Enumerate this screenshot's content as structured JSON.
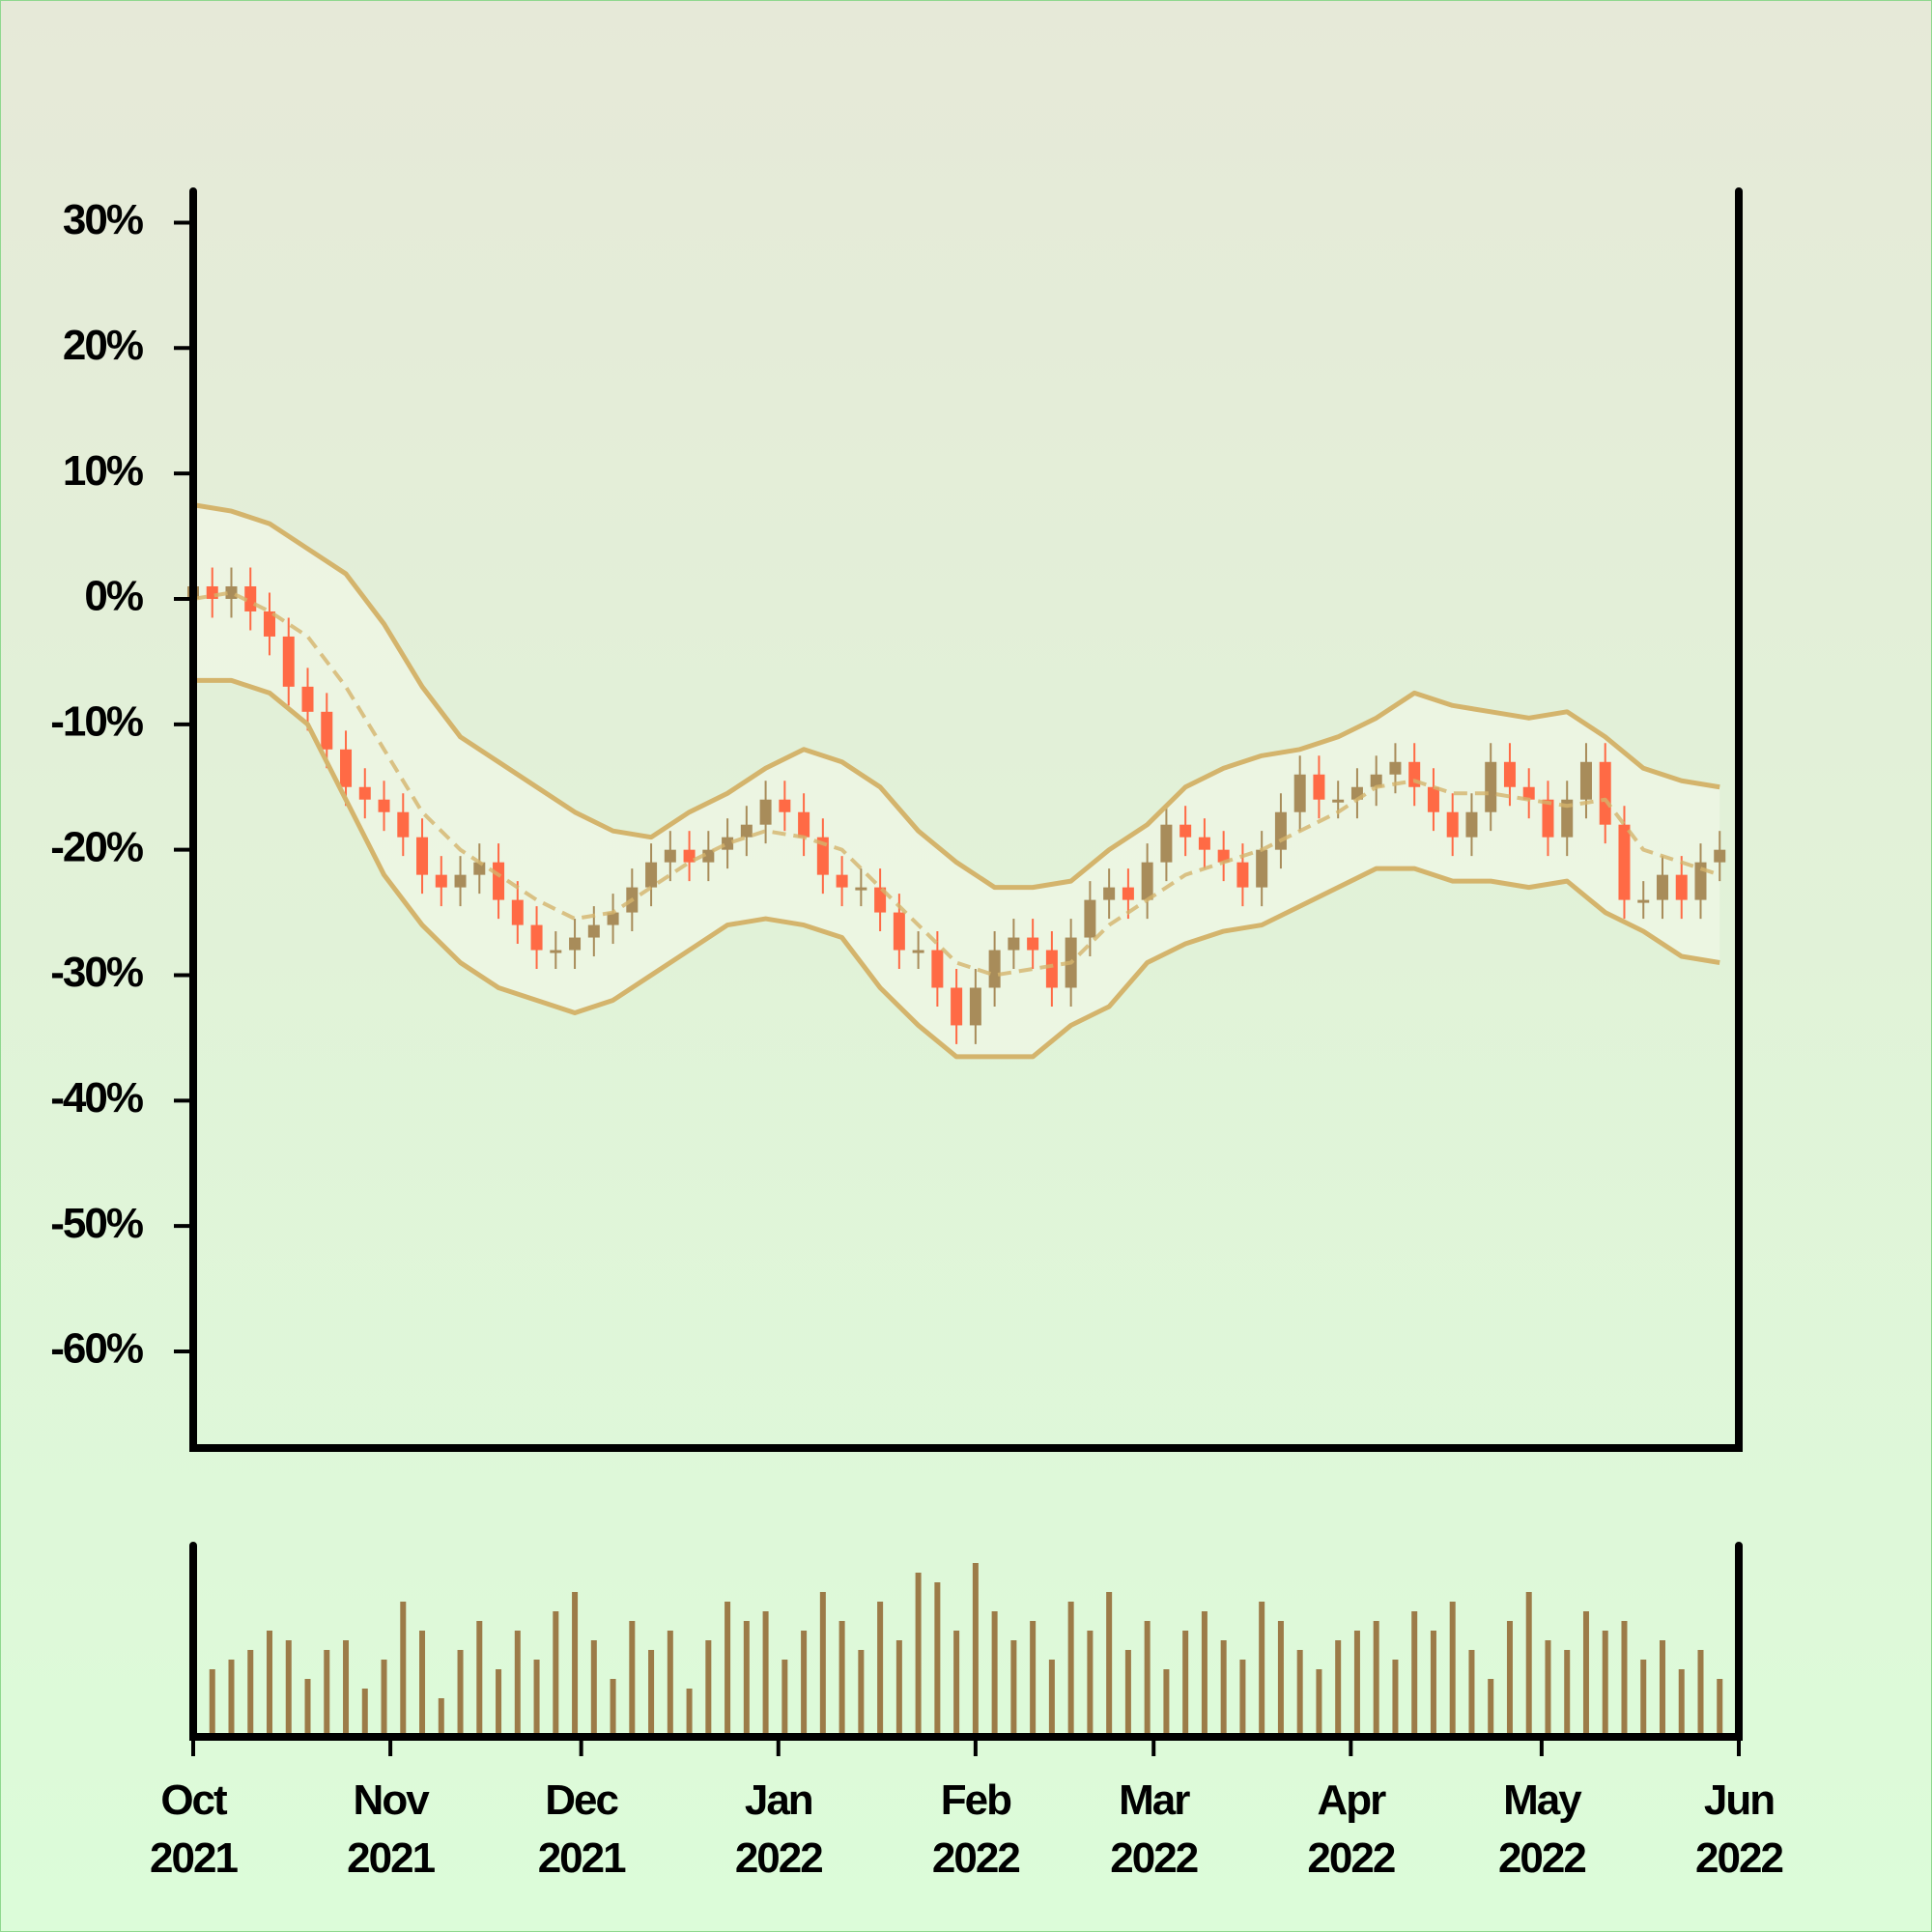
{
  "chart_data": {
    "type": "candlestick",
    "x": [
      0,
      3,
      6,
      9,
      12,
      15,
      18,
      21,
      24,
      27,
      30,
      33,
      36,
      39,
      42,
      45,
      48,
      51,
      54,
      57,
      60,
      63,
      66,
      69,
      72,
      75,
      78,
      81,
      84,
      87,
      90,
      93,
      96,
      99,
      102,
      105,
      108,
      111,
      114,
      117,
      120,
      123,
      126,
      129,
      132,
      135,
      138,
      141,
      144,
      147,
      150,
      153,
      156,
      159,
      162,
      165,
      168,
      171,
      174,
      177,
      180,
      183,
      186,
      189,
      192,
      195,
      198,
      201,
      204,
      207,
      210,
      213,
      216,
      219,
      222,
      225,
      228,
      231,
      234,
      237,
      240
    ],
    "open": [
      0,
      1,
      0,
      1,
      -1,
      -3,
      -7,
      -9,
      -12,
      -15,
      -16,
      -17,
      -19,
      -22,
      -23,
      -22,
      -21,
      -24,
      -26,
      -28,
      -28,
      -27,
      -26,
      -25,
      -23,
      -21,
      -20,
      -21,
      -20,
      -19,
      -18,
      -16,
      -17,
      -19,
      -22,
      -23,
      -23,
      -25,
      -28,
      -28,
      -31,
      -34,
      -31,
      -28,
      -27,
      -28,
      -31,
      -27,
      -24,
      -23,
      -24,
      -21,
      -18,
      -19,
      -20,
      -21,
      -23,
      -20,
      -17,
      -14,
      -16,
      -16,
      -15,
      -14,
      -13,
      -15,
      -17,
      -19,
      -17,
      -13,
      -15,
      -16,
      -19,
      -16,
      -13,
      -18,
      -24,
      -24,
      -22,
      -24,
      -21
    ],
    "high": [
      2.5,
      2.5,
      2.5,
      2.5,
      0.5,
      -1.5,
      -5.5,
      -7.5,
      -10.5,
      -13.5,
      -14.5,
      -15.5,
      -17.5,
      -20.5,
      -20.5,
      -19.5,
      -19.5,
      -22.5,
      -24.5,
      -26.5,
      -25.5,
      -24.5,
      -23.5,
      -21.5,
      -19.5,
      -18.5,
      -18.5,
      -18.5,
      -17.5,
      -16.5,
      -14.5,
      -14.5,
      -15.5,
      -17.5,
      -20.5,
      -21.5,
      -21.5,
      -23.5,
      -26.5,
      -26.5,
      -29.5,
      -29.5,
      -26.5,
      -25.5,
      -25.5,
      -26.5,
      -25.5,
      -22.5,
      -21.5,
      -21.5,
      -19.5,
      -16.5,
      -16.5,
      -17.5,
      -18.5,
      -19.5,
      -18.5,
      -15.5,
      -12.5,
      -12.5,
      -14.5,
      -13.5,
      -12.5,
      -11.5,
      -11.5,
      -13.5,
      -15.5,
      -15.5,
      -11.5,
      -11.5,
      -13.5,
      -14.5,
      -14.5,
      -11.5,
      -11.5,
      -16.5,
      -22.5,
      -20.5,
      -20.5,
      -19.5,
      -18.5
    ],
    "low": [
      -1.5,
      -1.5,
      -1.5,
      -2.5,
      -4.5,
      -8.5,
      -10.5,
      -13.5,
      -16.5,
      -17.5,
      -18.5,
      -20.5,
      -23.5,
      -24.5,
      -24.5,
      -23.5,
      -25.5,
      -27.5,
      -29.5,
      -29.5,
      -29.5,
      -28.5,
      -27.5,
      -26.5,
      -24.5,
      -22.5,
      -22.5,
      -22.5,
      -21.5,
      -20.5,
      -19.5,
      -18.5,
      -20.5,
      -23.5,
      -24.5,
      -24.5,
      -26.5,
      -29.5,
      -29.5,
      -32.5,
      -35.5,
      -35.5,
      -32.5,
      -29.5,
      -29.5,
      -32.5,
      -32.5,
      -28.5,
      -25.5,
      -25.5,
      -25.5,
      -22.5,
      -20.5,
      -21.5,
      -22.5,
      -24.5,
      -24.5,
      -21.5,
      -18.5,
      -17.5,
      -17.5,
      -17.5,
      -16.5,
      -15.5,
      -16.5,
      -18.5,
      -20.5,
      -20.5,
      -18.5,
      -16.5,
      -17.5,
      -20.5,
      -20.5,
      -17.5,
      -19.5,
      -25.5,
      -25.5,
      -25.5,
      -25.5,
      -25.5,
      -22.5
    ],
    "close": [
      1,
      0,
      1,
      -1,
      -3,
      -7,
      -9,
      -12,
      -15,
      -16,
      -17,
      -19,
      -22,
      -23,
      -22,
      -21,
      -24,
      -26,
      -28,
      -28,
      -27,
      -26,
      -25,
      -23,
      -21,
      -20,
      -21,
      -20,
      -19,
      -18,
      -16,
      -17,
      -19,
      -22,
      -23,
      -23,
      -25,
      -28,
      -28,
      -31,
      -34,
      -31,
      -28,
      -27,
      -28,
      -31,
      -27,
      -24,
      -23,
      -24,
      -21,
      -18,
      -19,
      -20,
      -21,
      -23,
      -20,
      -17,
      -14,
      -16,
      -16,
      -15,
      -14,
      -13,
      -15,
      -17,
      -19,
      -17,
      -13,
      -15,
      -16,
      -19,
      -16,
      -13,
      -18,
      -24,
      -24,
      -22,
      -24,
      -21,
      -20
    ],
    "volume": [
      20,
      35,
      40,
      45,
      55,
      50,
      30,
      45,
      50,
      25,
      40,
      70,
      55,
      20,
      45,
      60,
      35,
      55,
      40,
      65,
      75,
      50,
      30,
      60,
      45,
      55,
      25,
      50,
      70,
      60,
      65,
      40,
      55,
      75,
      60,
      45,
      70,
      50,
      85,
      80,
      55,
      90,
      65,
      50,
      60,
      40,
      70,
      55,
      75,
      45,
      60,
      35,
      55,
      65,
      50,
      40,
      70,
      60,
      45,
      35,
      50,
      55,
      60,
      40,
      65,
      55,
      70,
      45,
      30,
      60,
      75,
      50,
      45,
      65,
      55,
      60,
      40,
      50,
      35,
      45,
      30
    ],
    "up_color": "#a88c5a",
    "down_color": "#ff6a45",
    "volume_color": "#9c7b48",
    "bands": {
      "color": "#d4b46c",
      "x": [
        0,
        6,
        12,
        18,
        24,
        30,
        36,
        42,
        48,
        54,
        60,
        66,
        72,
        78,
        84,
        90,
        96,
        102,
        108,
        114,
        120,
        126,
        132,
        138,
        144,
        150,
        156,
        162,
        168,
        174,
        180,
        186,
        192,
        198,
        204,
        210,
        216,
        222,
        228,
        234,
        240
      ],
      "middle": [
        0,
        0.5,
        -1,
        -3,
        -7,
        -12,
        -17,
        -20,
        -22,
        -24,
        -25.5,
        -25,
        -23,
        -21,
        -19.5,
        -18.5,
        -19,
        -20,
        -23,
        -26,
        -29,
        -30,
        -29.5,
        -29,
        -26,
        -24,
        -22,
        -21,
        -20,
        -18.5,
        -17,
        -15,
        -14.5,
        -15.5,
        -15.5,
        -16,
        -16.5,
        -16,
        -20,
        -21,
        -22
      ],
      "upper": [
        7.5,
        7,
        6,
        4,
        2,
        -2,
        -7,
        -11,
        -13,
        -15,
        -17,
        -18.5,
        -19,
        -17,
        -15.5,
        -13.5,
        -12,
        -13,
        -15,
        -18.5,
        -21,
        -23,
        -23,
        -22.5,
        -20,
        -18,
        -15,
        -13.5,
        -12.5,
        -12,
        -11,
        -9.5,
        -7.5,
        -8.5,
        -9,
        -9.5,
        -9,
        -11,
        -13.5,
        -14.5,
        -15
      ],
      "lower": [
        -6.5,
        -6.5,
        -7.5,
        -10,
        -16,
        -22,
        -26,
        -29,
        -31,
        -32,
        -33,
        -32,
        -30,
        -28,
        -26,
        -25.5,
        -26,
        -27,
        -31,
        -34,
        -36.5,
        -36.5,
        -36.5,
        -34,
        -32.5,
        -29,
        -27.5,
        -26.5,
        -26,
        -24.5,
        -23,
        -21.5,
        -21.5,
        -22.5,
        -22.5,
        -23,
        -22.5,
        -25,
        -26.5,
        -28.5,
        -29
      ]
    },
    "xlim": [
      0,
      243
    ],
    "xticks": [
      {
        "value": 0,
        "label": "Oct 2021"
      },
      {
        "value": 31,
        "label": "Nov 2021"
      },
      {
        "value": 61,
        "label": "Dec 2021"
      },
      {
        "value": 92,
        "label": "Jan 2022"
      },
      {
        "value": 123,
        "label": "Feb 2022"
      },
      {
        "value": 151,
        "label": "Mar 2022"
      },
      {
        "value": 182,
        "label": "Apr 2022"
      },
      {
        "value": 212,
        "label": "May 2022"
      },
      {
        "value": 243,
        "label": "Jun 2022"
      }
    ],
    "ylim": [
      -67.7,
      32.5
    ],
    "yticks": [
      {
        "value": 30,
        "label": "30%"
      },
      {
        "value": 20,
        "label": "20%"
      },
      {
        "value": 10,
        "label": "10%"
      },
      {
        "value": 0,
        "label": "0%"
      },
      {
        "value": -10,
        "label": "-10%"
      },
      {
        "value": -20,
        "label": "-20%"
      },
      {
        "value": -30,
        "label": "-30%"
      },
      {
        "value": -40,
        "label": "-40%"
      },
      {
        "value": -50,
        "label": "-50%"
      },
      {
        "value": -60,
        "label": "-60%"
      }
    ],
    "volume_ylim": [
      0,
      100
    ]
  }
}
